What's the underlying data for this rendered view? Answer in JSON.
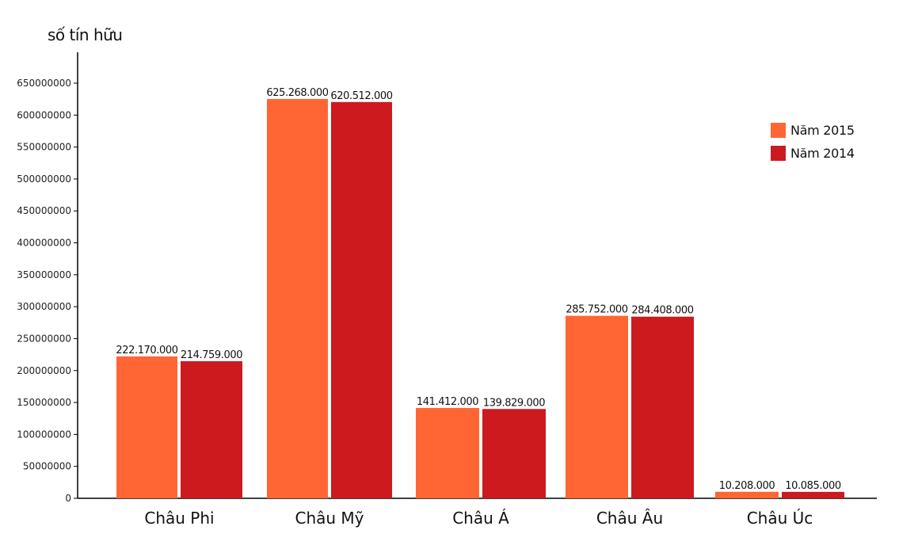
{
  "chart_data": {
    "type": "bar",
    "title": "",
    "ylabel": "số tín hữu",
    "xlabel": "",
    "ylim": [
      0,
      700000000
    ],
    "yticks": [
      0,
      50000000,
      100000000,
      150000000,
      200000000,
      250000000,
      300000000,
      350000000,
      400000000,
      450000000,
      500000000,
      550000000,
      600000000,
      650000000
    ],
    "ytick_labels": [
      "0",
      "50000000",
      "100000000",
      "150000000",
      "200000000",
      "250000000",
      "300000000",
      "350000000",
      "400000000",
      "450000000",
      "500000000",
      "550000000",
      "600000000",
      "650000000"
    ],
    "categories": [
      "Châu Phi",
      "Châu Mỹ",
      "Châu Á",
      "Châu Âu",
      "Châu Úc"
    ],
    "series": [
      {
        "name": "Năm 2015",
        "color": "#ff6633",
        "values": [
          222170000,
          625268000,
          141412000,
          285752000,
          10208000
        ],
        "labels": [
          "222.170.000",
          "625.268.000",
          "141.412.000",
          "285.752.000",
          "10.208.000"
        ]
      },
      {
        "name": "Năm 2014",
        "color": "#cc1a1f",
        "values": [
          214759000,
          620512000,
          139829000,
          284408000,
          10085000
        ],
        "labels": [
          "214.759.000",
          "620.512.000",
          "139.829.000",
          "284.408.000",
          "10.085.000"
        ]
      }
    ],
    "legend_position": "top-right",
    "grid": false
  }
}
